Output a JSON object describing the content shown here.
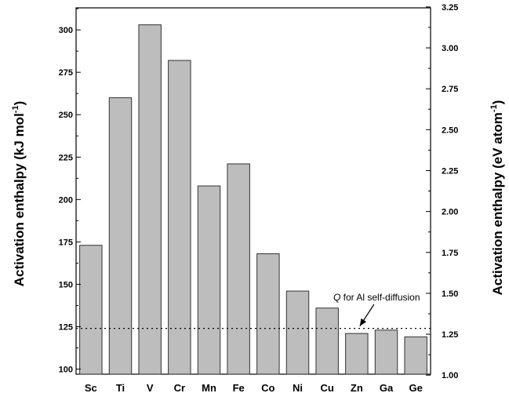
{
  "chart_data": {
    "type": "bar",
    "categories": [
      "Sc",
      "Ti",
      "V",
      "Cr",
      "Mn",
      "Fe",
      "Co",
      "Ni",
      "Cu",
      "Zn",
      "Ga",
      "Ge"
    ],
    "values": [
      173,
      260,
      303,
      282,
      208,
      221,
      168,
      146,
      136,
      121,
      123,
      119
    ],
    "ylim": [
      97,
      313
    ],
    "y_ticks": [
      100,
      125,
      150,
      175,
      200,
      225,
      250,
      275,
      300
    ],
    "y2lim": [
      1.0058,
      3.2446
    ],
    "y2_ticks": [
      "1.00",
      "1.25",
      "1.50",
      "1.75",
      "2.00",
      "2.25",
      "2.50",
      "2.75",
      "3.00",
      "3.25"
    ],
    "ylabel_left": {
      "main": "Activation enthalpy  (kJ mol",
      "sup": "-1",
      "close": ")"
    },
    "ylabel_right": {
      "main": "Activation enthalpy  (eV atom",
      "sup": "-1",
      "close": ")"
    },
    "reference_line": {
      "value": 124,
      "style": "dotted"
    },
    "annotation": {
      "italic": "Q",
      "rest": " for Al self-diffusion",
      "points_to_category": "Zn"
    },
    "bar_color": "#bdbdbd",
    "grid": false
  }
}
